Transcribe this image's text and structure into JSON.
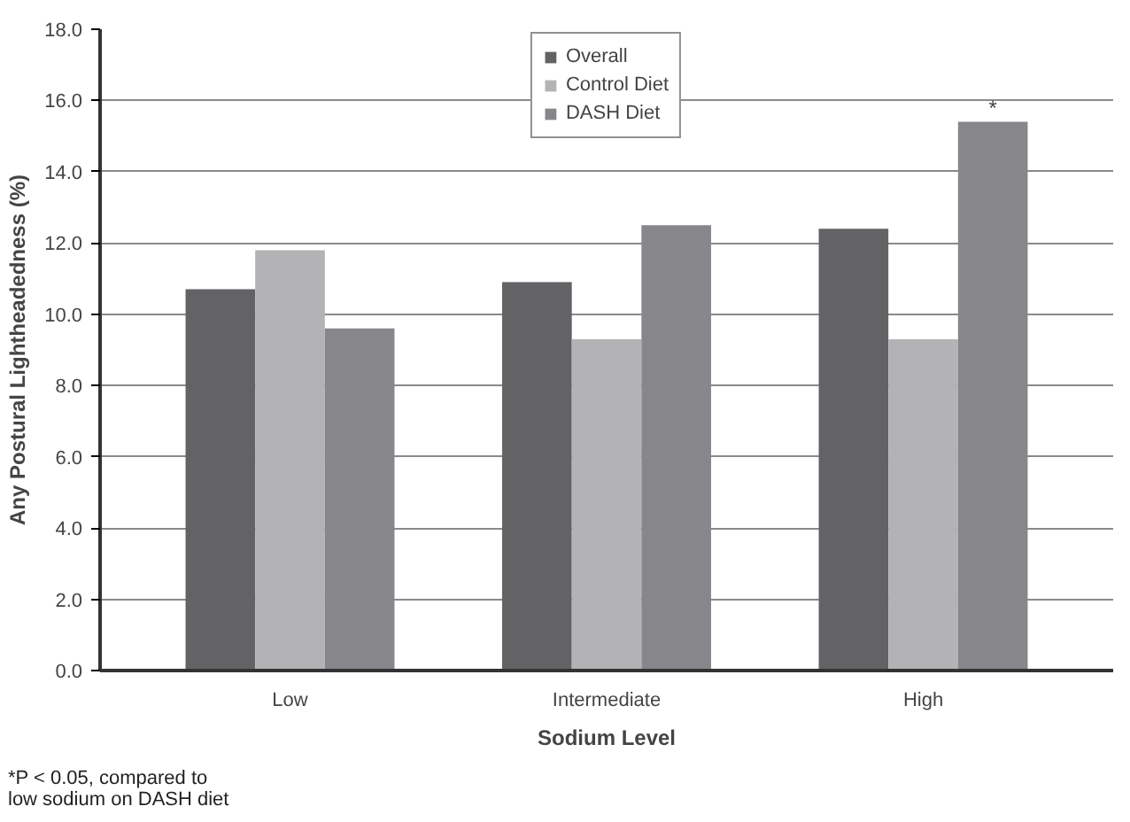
{
  "chart_data": {
    "type": "bar",
    "xlabel": "Sodium Level",
    "ylabel": "Any Postural Lightheadedness (%)",
    "categories": [
      "Low",
      "Intermediate",
      "High"
    ],
    "series": [
      {
        "name": "Overall",
        "color": "#636366",
        "values": [
          10.7,
          10.9,
          12.4
        ]
      },
      {
        "name": "Control Diet",
        "color": "#b3b3b6",
        "values": [
          11.8,
          9.3,
          9.3
        ]
      },
      {
        "name": "DASH Diet",
        "color": "#87878b",
        "values": [
          9.6,
          12.5,
          15.4
        ],
        "value_labels": [
          null,
          null,
          "*"
        ]
      }
    ],
    "ylim": [
      0,
      18
    ],
    "yticks": [
      {
        "value": 0,
        "label": "0.0"
      },
      {
        "value": 2,
        "label": "2.0"
      },
      {
        "value": 4,
        "label": "4.0"
      },
      {
        "value": 6,
        "label": "6.0"
      },
      {
        "value": 8,
        "label": "8.0"
      },
      {
        "value": 10,
        "label": "10.0"
      },
      {
        "value": 12,
        "label": "12.0"
      },
      {
        "value": 14,
        "label": "14.0"
      },
      {
        "value": 16,
        "label": "16.0"
      },
      {
        "value": 18,
        "label": "18.0"
      }
    ],
    "grid": "y",
    "legend": "top",
    "annotations": [
      "*P < 0.05, compared to\nlow sodium on DASH diet"
    ]
  }
}
